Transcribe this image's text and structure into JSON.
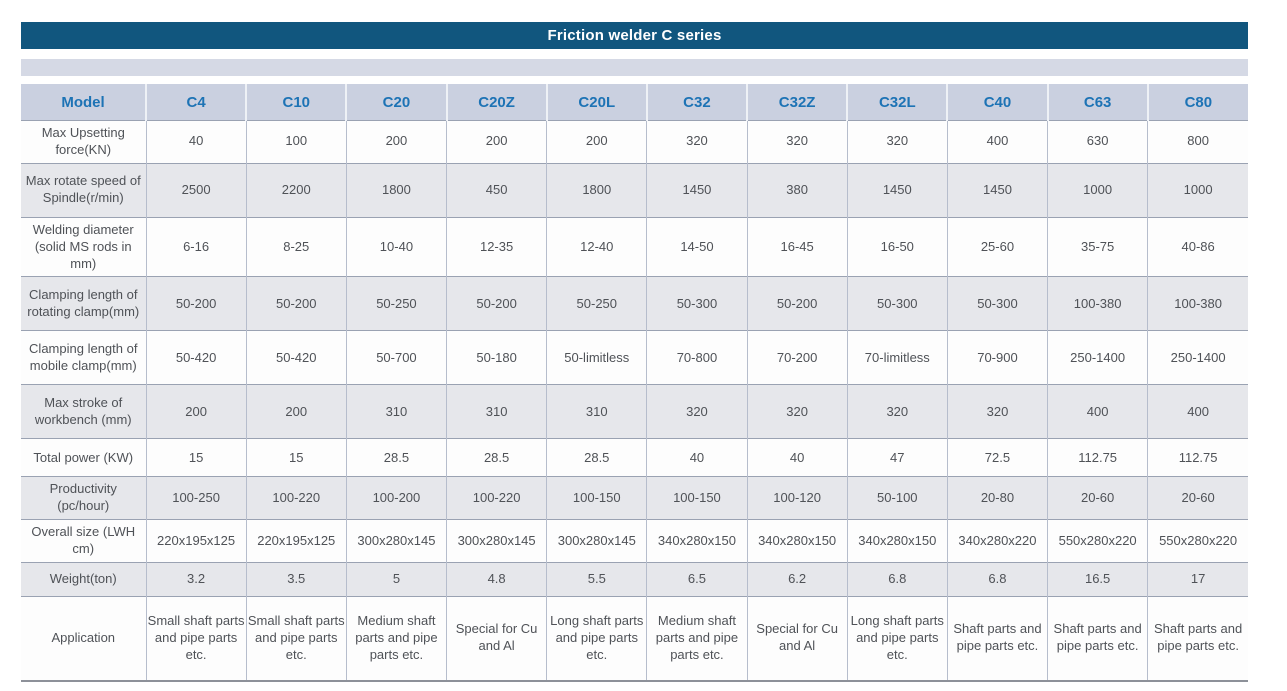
{
  "title_bar": {
    "title": "Friction welder C series"
  },
  "colors": {
    "title_bg": "#11567e",
    "title_text": "#ffffff",
    "header_bg": "#cad0e0",
    "header_text": "#1d73b5",
    "strip_bg": "#d5d9e5",
    "row_alt_bg": "#e6e7eb",
    "body_text": "#4f5257"
  },
  "table": {
    "columns": [
      "Model",
      "C4",
      "C10",
      "C20",
      "C20Z",
      "C20L",
      "C32",
      "C32Z",
      "C32L",
      "C40",
      "C63",
      "C80"
    ],
    "rows": [
      {
        "label": "Max Upsetting force(KN)",
        "values": [
          "40",
          "100",
          "200",
          "200",
          "200",
          "320",
          "320",
          "320",
          "400",
          "630",
          "800"
        ]
      },
      {
        "label": "Max rotate speed of Spindle(r/min)",
        "values": [
          "2500",
          "2200",
          "1800",
          "450",
          "1800",
          "1450",
          "380",
          "1450",
          "1450",
          "1000",
          "1000"
        ]
      },
      {
        "label": "Welding diameter (solid MS rods in mm)",
        "values": [
          "6-16",
          "8-25",
          "10-40",
          "12-35",
          "12-40",
          "14-50",
          "16-45",
          "16-50",
          "25-60",
          "35-75",
          "40-86"
        ]
      },
      {
        "label": "Clamping length of rotating clamp(mm)",
        "values": [
          "50-200",
          "50-200",
          "50-250",
          "50-200",
          "50-250",
          "50-300",
          "50-200",
          "50-300",
          "50-300",
          "100-380",
          "100-380"
        ]
      },
      {
        "label": "Clamping length of mobile clamp(mm)",
        "values": [
          "50-420",
          "50-420",
          "50-700",
          "50-180",
          "50-limitless",
          "70-800",
          "70-200",
          "70-limitless",
          "70-900",
          "250-1400",
          "250-1400"
        ]
      },
      {
        "label": "Max stroke of workbench (mm)",
        "values": [
          "200",
          "200",
          "310",
          "310",
          "310",
          "320",
          "320",
          "320",
          "320",
          "400",
          "400"
        ]
      },
      {
        "label": "Total power (KW)",
        "values": [
          "15",
          "15",
          "28.5",
          "28.5",
          "28.5",
          "40",
          "40",
          "47",
          "72.5",
          "112.75",
          "112.75"
        ]
      },
      {
        "label": "Productivity (pc/hour)",
        "values": [
          "100-250",
          "100-220",
          "100-200",
          "100-220",
          "100-150",
          "100-150",
          "100-120",
          "50-100",
          "20-80",
          "20-60",
          "20-60"
        ]
      },
      {
        "label": "Overall size (LWH cm)",
        "values": [
          "220x195x125",
          "220x195x125",
          "300x280x145",
          "300x280x145",
          "300x280x145",
          "340x280x150",
          "340x280x150",
          "340x280x150",
          "340x280x220",
          "550x280x220",
          "550x280x220"
        ]
      },
      {
        "label": "Weight(ton)",
        "values": [
          "3.2",
          "3.5",
          "5",
          "4.8",
          "5.5",
          "6.5",
          "6.2",
          "6.8",
          "6.8",
          "16.5",
          "17"
        ]
      },
      {
        "label": "Application",
        "values": [
          "Small shaft parts and pipe parts etc.",
          "Small shaft parts and pipe parts etc.",
          "Medium shaft parts and pipe parts etc.",
          "Special for Cu and Al",
          "Long shaft parts and pipe parts etc.",
          "Medium shaft parts and pipe parts etc.",
          "Special for Cu and Al",
          "Long shaft parts and pipe parts etc.",
          "Shaft parts and pipe parts etc.",
          "Shaft parts and pipe parts etc.",
          "Shaft parts and pipe parts etc."
        ]
      }
    ]
  }
}
